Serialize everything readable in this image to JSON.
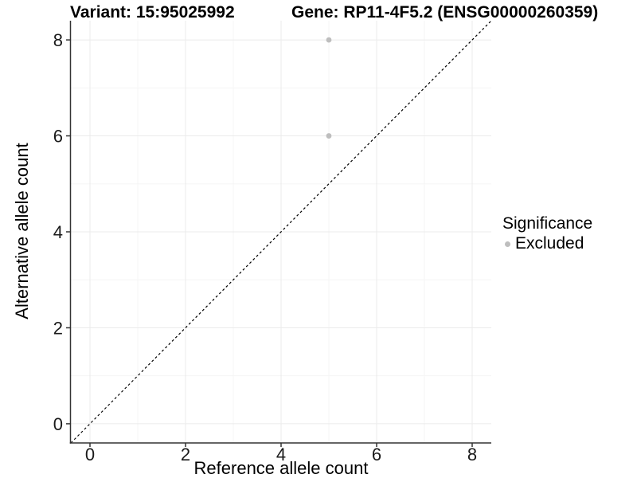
{
  "titles": {
    "variant": "Variant: 15:95025992",
    "gene": "Gene: RP11-4F5.2 (ENSG00000260359)"
  },
  "chart_data": {
    "type": "scatter",
    "title_left": "Variant: 15:95025992",
    "title_right": "Gene: RP11-4F5.2 (ENSG00000260359)",
    "xlabel": "Reference allele count",
    "ylabel": "Alternative allele count",
    "xlim": [
      -0.4,
      8.4
    ],
    "ylim": [
      -0.4,
      8.4
    ],
    "xticks": [
      0,
      2,
      4,
      6,
      8
    ],
    "yticks": [
      0,
      2,
      4,
      6,
      8
    ],
    "grid": {
      "major": [
        0,
        2,
        4,
        6,
        8
      ],
      "minor": [
        1,
        3,
        5,
        7
      ]
    },
    "points": [
      {
        "x": 5,
        "y": 8,
        "significance": "Excluded"
      },
      {
        "x": 5,
        "y": 6,
        "significance": "Excluded"
      }
    ],
    "reference_line": {
      "style": "dashed",
      "from": [
        -0.4,
        -0.4
      ],
      "to": [
        8.4,
        8.4
      ],
      "color": "#000000"
    },
    "point_color": "#bebebe",
    "legend_position": "right"
  },
  "legend": {
    "title": "Significance",
    "items": [
      {
        "label": "Excluded",
        "color": "#bebebe"
      }
    ]
  },
  "colors": {
    "background": "#ffffff",
    "axis": "#333333",
    "tick_text": "#1a1a1a",
    "grid_major": "#ebebeb",
    "grid_minor": "#f5f5f5",
    "point": "#bebebe",
    "reference_line": "#000000"
  }
}
